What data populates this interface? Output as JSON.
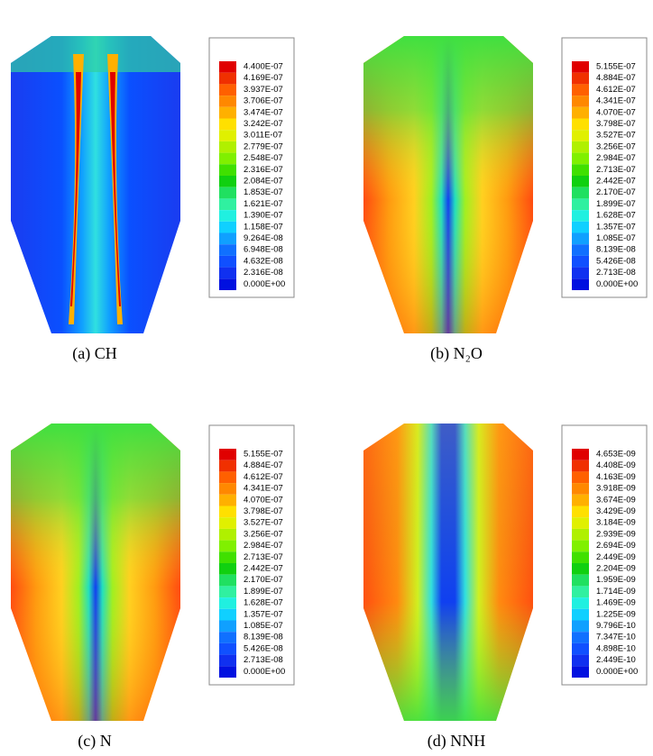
{
  "panels": [
    {
      "caption": "(a) CH",
      "legend": [
        "4.400E-07",
        "4.169E-07",
        "3.937E-07",
        "3.706E-07",
        "3.474E-07",
        "3.242E-07",
        "3.011E-07",
        "2.779E-07",
        "2.548E-07",
        "2.316E-07",
        "2.084E-07",
        "1.853E-07",
        "1.621E-07",
        "1.390E-07",
        "1.158E-07",
        "9.264E-08",
        "6.948E-08",
        "4.632E-08",
        "2.316E-08",
        "0.000E+00"
      ]
    },
    {
      "caption": "(b) N₂O",
      "legend": [
        "5.155E-07",
        "4.884E-07",
        "4.612E-07",
        "4.341E-07",
        "4.070E-07",
        "3.798E-07",
        "3.527E-07",
        "3.256E-07",
        "2.984E-07",
        "2.713E-07",
        "2.442E-07",
        "2.170E-07",
        "1.899E-07",
        "1.628E-07",
        "1.357E-07",
        "1.085E-07",
        "8.139E-08",
        "5.426E-08",
        "2.713E-08",
        "0.000E+00"
      ]
    },
    {
      "caption": "(c) N",
      "legend": [
        "5.155E-07",
        "4.884E-07",
        "4.612E-07",
        "4.341E-07",
        "4.070E-07",
        "3.798E-07",
        "3.527E-07",
        "3.256E-07",
        "2.984E-07",
        "2.713E-07",
        "2.442E-07",
        "2.170E-07",
        "1.899E-07",
        "1.628E-07",
        "1.357E-07",
        "1.085E-07",
        "8.139E-08",
        "5.426E-08",
        "2.713E-08",
        "0.000E+00"
      ]
    },
    {
      "caption": "(d) NNH",
      "legend": [
        "4.653E-09",
        "4.408E-09",
        "4.163E-09",
        "3.918E-09",
        "3.674E-09",
        "3.429E-09",
        "3.184E-09",
        "2.939E-09",
        "2.694E-09",
        "2.449E-09",
        "2.204E-09",
        "1.959E-09",
        "1.714E-09",
        "1.469E-09",
        "1.225E-09",
        "9.796E-10",
        "7.347E-10",
        "4.898E-10",
        "2.449E-10",
        "0.000E+00"
      ]
    }
  ]
}
